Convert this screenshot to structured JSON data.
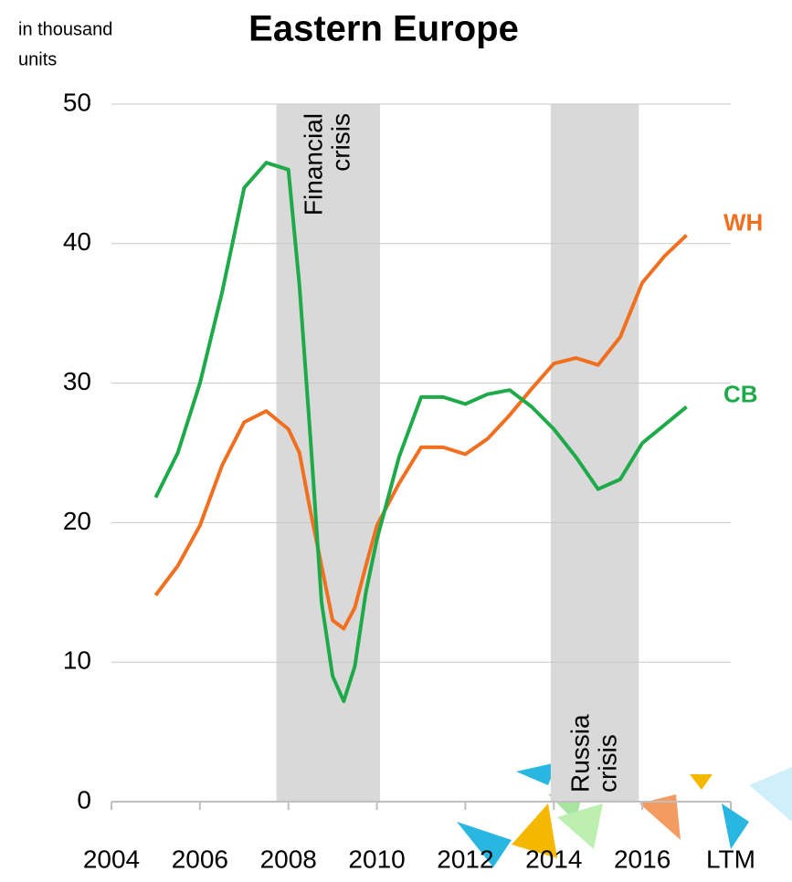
{
  "chart_data": {
    "type": "line",
    "title": "Eastern Europe",
    "y_axis_label": [
      "in thousand",
      "units"
    ],
    "xlim": [
      2004,
      2018
    ],
    "xticks": [
      2004,
      2006,
      2008,
      2010,
      2012,
      2014,
      2016,
      {
        "value": 2018,
        "label": "LTM"
      }
    ],
    "ylim": [
      0,
      50
    ],
    "yticks": [
      0,
      10,
      20,
      30,
      40,
      50
    ],
    "grid": true,
    "x": [
      2005,
      2005.5,
      2006,
      2006.5,
      2007,
      2007.5,
      2008,
      2008.25,
      2008.5,
      2008.75,
      2009,
      2009.25,
      2009.5,
      2009.75,
      2010,
      2010.5,
      2011,
      2011.5,
      2012,
      2012.5,
      2013,
      2013.5,
      2014,
      2014.5,
      2015,
      2015.5,
      2016,
      2016.5,
      2017
    ],
    "series": [
      {
        "name": "WH",
        "color": "#f07020",
        "values": [
          14.8,
          16.9,
          19.8,
          24.1,
          27.2,
          28,
          26.7,
          25,
          20.8,
          16.9,
          13,
          12.4,
          13.9,
          16.9,
          19.8,
          22.8,
          25.4,
          25.4,
          24.9,
          26,
          27.7,
          29.6,
          31.4,
          31.8,
          31.3,
          33.3,
          37.2,
          39.1,
          40.6
        ]
      },
      {
        "name": "CB",
        "color": "#1faa4a",
        "values": [
          21.8,
          25,
          30,
          36.5,
          44,
          45.8,
          45.3,
          37,
          26,
          14.3,
          9,
          7.2,
          9.7,
          15,
          18.8,
          24.7,
          29,
          29,
          28.5,
          29.2,
          29.5,
          28.3,
          26.7,
          24.7,
          22.4,
          23.1,
          25.7,
          27,
          28.3
        ]
      }
    ],
    "shaded": [
      {
        "label": [
          "Financial",
          "crisis"
        ],
        "start": 2007.73,
        "end": 2010.07
      },
      {
        "label": [
          "Russia",
          "crisis"
        ],
        "start": 2013.93,
        "end": 2015.92
      }
    ]
  }
}
